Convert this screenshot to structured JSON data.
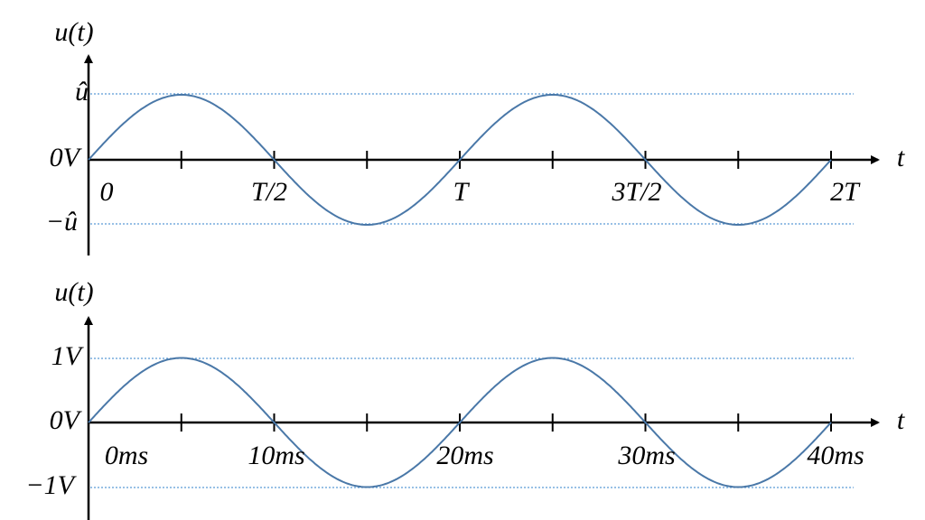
{
  "panels": [
    {
      "y_label": "u(t)",
      "x_label": "t",
      "y_ticks": [
        "û",
        "0V",
        "−û"
      ],
      "x_ticks": [
        "0",
        "T/2",
        "T",
        "3T/2",
        "2T"
      ]
    },
    {
      "y_label": "u(t)",
      "x_label": "t",
      "y_ticks": [
        "1V",
        "0V",
        "−1V"
      ],
      "x_ticks": [
        "0ms",
        "10ms",
        "20ms",
        "30ms",
        "40ms"
      ]
    }
  ]
}
